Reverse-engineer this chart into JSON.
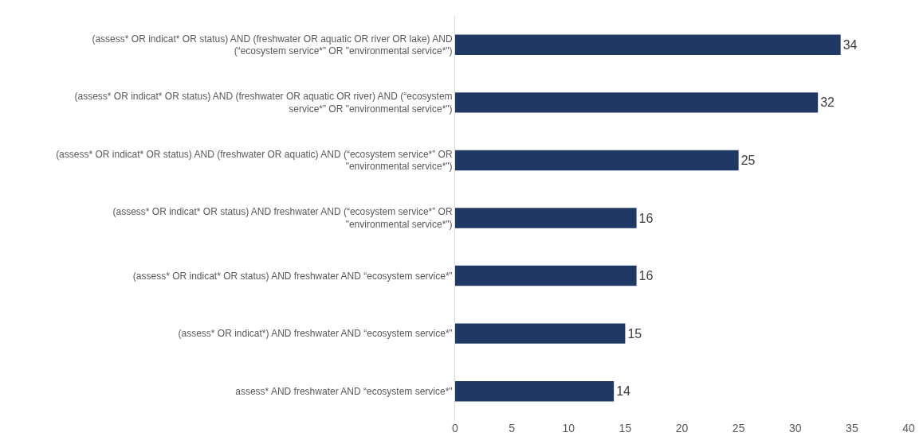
{
  "chart_data": {
    "type": "bar",
    "orientation": "horizontal",
    "categories": [
      "(assess* OR indicat* OR status) AND (freshwater OR aquatic OR river OR lake) AND (“ecosystem service*” OR \"environmental service*\")",
      "(assess* OR indicat* OR status) AND (freshwater OR aquatic OR river) AND (“ecosystem service*” OR \"environmental service*\")",
      "(assess* OR indicat* OR status) AND (freshwater OR aquatic) AND (“ecosystem service*” OR \"environmental service*\")",
      "(assess* OR indicat* OR status) AND freshwater AND (“ecosystem service*” OR \"environmental service*\")",
      "(assess* OR indicat* OR status) AND freshwater AND “ecosystem service*”",
      "(assess* OR indicat*) AND freshwater AND “ecosystem service*”",
      "assess* AND freshwater AND “ecosystem service*\""
    ],
    "values": [
      34,
      32,
      25,
      16,
      16,
      15,
      14
    ],
    "color": "#203864",
    "xlim": [
      0,
      40
    ],
    "xticks": [
      0,
      5,
      10,
      15,
      20,
      25,
      30,
      35,
      40
    ],
    "data_labels": true,
    "grid": false
  }
}
